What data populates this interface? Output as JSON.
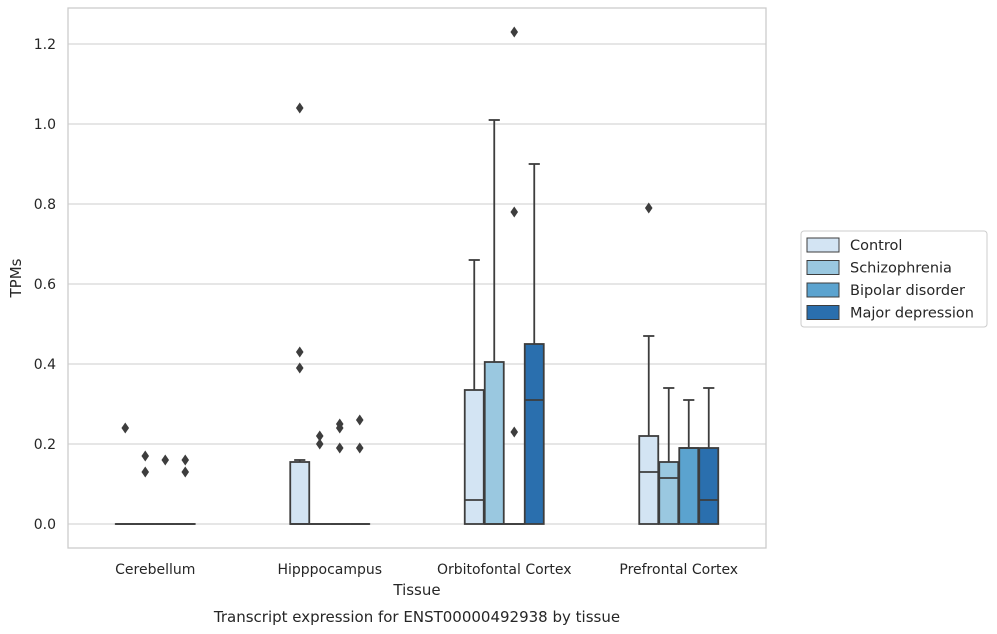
{
  "caption": "Transcript expression for ENST00000492938 by tissue",
  "colors": {
    "background": "#ffffff",
    "grid": "#cccccc",
    "frame": "#cccccc",
    "box_edge": "#3d3d3d",
    "series": [
      "#d3e4f3",
      "#9ac8e0",
      "#5ba3cf",
      "#2a6fae"
    ]
  },
  "chart_data": {
    "type": "box",
    "xlabel": "Tissue",
    "ylabel": "TPMs",
    "ylim": [
      -0.06,
      1.29
    ],
    "yticks": [
      0.0,
      0.2,
      0.4,
      0.6,
      0.8,
      1.0,
      1.2
    ],
    "ytick_labels": [
      "0.0",
      "0.2",
      "0.4",
      "0.6",
      "0.8",
      "1.0",
      "1.2"
    ],
    "grid": "horizontal",
    "legend_position": "right",
    "categories": [
      "Cerebellum",
      "Hipppocampus",
      "Orbitofontal Cortex",
      "Prefrontal Cortex"
    ],
    "series": [
      {
        "name": "Control",
        "boxes": [
          {
            "q1": 0,
            "median": 0,
            "q3": 0,
            "whislo": 0,
            "whishi": 0,
            "fliers": [
              0.24
            ]
          },
          {
            "q1": 0,
            "median": 0,
            "q3": 0.155,
            "whislo": 0,
            "whishi": 0.16,
            "fliers": [
              1.04,
              0.43,
              0.39
            ]
          },
          {
            "q1": 0,
            "median": 0.06,
            "q3": 0.335,
            "whislo": 0,
            "whishi": 0.66,
            "fliers": []
          },
          {
            "q1": 0,
            "median": 0.13,
            "q3": 0.22,
            "whislo": 0,
            "whishi": 0.47,
            "fliers": [
              0.79
            ]
          }
        ]
      },
      {
        "name": "Schizophrenia",
        "boxes": [
          {
            "q1": 0,
            "median": 0,
            "q3": 0,
            "whislo": 0,
            "whishi": 0,
            "fliers": [
              0.17,
              0.13
            ]
          },
          {
            "q1": 0,
            "median": 0,
            "q3": 0,
            "whislo": 0,
            "whishi": 0,
            "fliers": [
              0.22,
              0.2
            ]
          },
          {
            "q1": 0,
            "median": 0,
            "q3": 0.405,
            "whislo": 0,
            "whishi": 1.01,
            "fliers": []
          },
          {
            "q1": 0,
            "median": 0.115,
            "q3": 0.155,
            "whislo": 0,
            "whishi": 0.34,
            "fliers": []
          }
        ]
      },
      {
        "name": "Bipolar disorder",
        "boxes": [
          {
            "q1": 0,
            "median": 0,
            "q3": 0,
            "whislo": 0,
            "whishi": 0,
            "fliers": [
              0.16
            ]
          },
          {
            "q1": 0,
            "median": 0,
            "q3": 0,
            "whislo": 0,
            "whishi": 0,
            "fliers": [
              0.25,
              0.24,
              0.19
            ]
          },
          {
            "q1": 0,
            "median": 0,
            "q3": 0,
            "whislo": 0,
            "whishi": 0,
            "fliers": [
              1.23,
              0.78,
              0.23
            ]
          },
          {
            "q1": 0,
            "median": 0.19,
            "q3": 0.19,
            "whislo": 0,
            "whishi": 0.31,
            "fliers": []
          }
        ]
      },
      {
        "name": "Major depression",
        "boxes": [
          {
            "q1": 0,
            "median": 0,
            "q3": 0,
            "whislo": 0,
            "whishi": 0,
            "fliers": [
              0.16,
              0.13
            ]
          },
          {
            "q1": 0,
            "median": 0,
            "q3": 0,
            "whislo": 0,
            "whishi": 0,
            "fliers": [
              0.26,
              0.19
            ]
          },
          {
            "q1": 0,
            "median": 0.31,
            "q3": 0.45,
            "whislo": 0,
            "whishi": 0.9,
            "fliers": []
          },
          {
            "q1": 0,
            "median": 0.06,
            "q3": 0.19,
            "whislo": 0,
            "whishi": 0.34,
            "fliers": []
          }
        ]
      }
    ]
  }
}
